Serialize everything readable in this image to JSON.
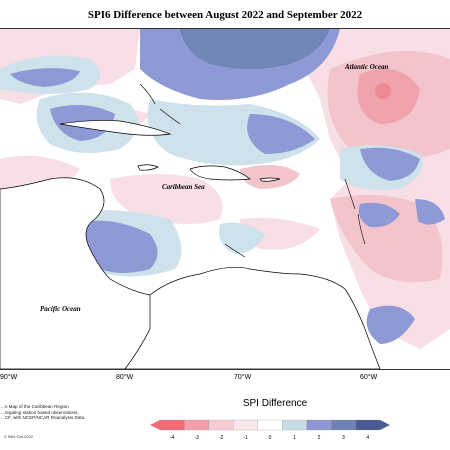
{
  "map": {
    "title": "SPI6 Difference between August 2022 and September 2022",
    "labels": {
      "atlantic": "Atlantic Ocean",
      "caribbean": "Caribbean Sea",
      "pacific": "Pacific Ocean"
    },
    "longitude_ticks": [
      "90°W",
      "80°W",
      "70°W",
      "60°W"
    ],
    "footnote_lines": [
      "...n Map of the Caribbean Region",
      "...regating station based observations,",
      "...CF, with NCEP/NCAR Reanalysis Data."
    ],
    "credit": "© IMH Oct-2022"
  },
  "legend": {
    "title": "SPI Difference",
    "tick_labels": [
      "-4",
      "-3",
      "-2",
      "-1",
      "0",
      "1",
      "2",
      "3",
      "4"
    ],
    "colors": [
      "#f06b74",
      "#f5a0a8",
      "#f7cbd2",
      "#fbe6ea",
      "#ffffff",
      "#c9dde8",
      "#8c97d4",
      "#6b82b4",
      "#475a93"
    ]
  },
  "colors": {
    "ocean_white": "#ffffff",
    "pale_pink": "#f8dfe5",
    "mid_pink": "#f3c4cc",
    "strong_pink": "#f0a3ab",
    "pale_blue": "#cfe1ea",
    "mid_blue": "#8e99d6",
    "dark_blue": "#6f86b6",
    "land_line": "#000000"
  }
}
